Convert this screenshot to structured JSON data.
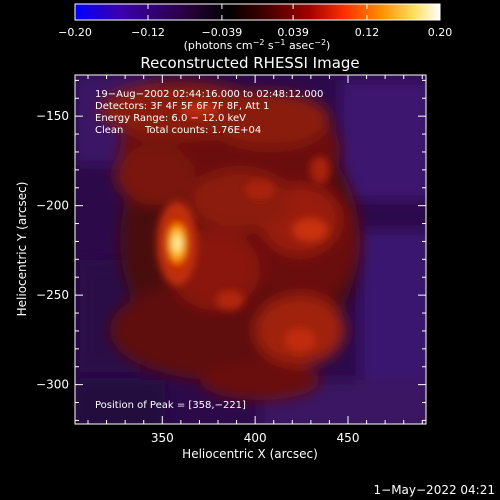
{
  "chart_data": {
    "type": "heatmap",
    "title": "Reconstructed RHESSI Image",
    "xlabel": "Heliocentric X (arcsec)",
    "ylabel": "Heliocentric Y (arcsec)",
    "xlim": [
      303,
      492
    ],
    "ylim": [
      -322,
      -127
    ],
    "x_ticks": [
      350,
      400,
      450
    ],
    "y_ticks": [
      -150,
      -200,
      -250,
      -300
    ],
    "x_tick_labels": [
      "350",
      "400",
      "450"
    ],
    "y_tick_labels": [
      "−150",
      "−200",
      "−250",
      "−300"
    ],
    "colorbar": {
      "min": -0.2,
      "max": 0.2,
      "ticks": [
        -0.2,
        -0.12,
        -0.039,
        0.039,
        0.12,
        0.2
      ],
      "tick_labels": [
        "−0.20",
        "−0.12",
        "−0.039",
        "0.039",
        "0.12",
        "0.20"
      ],
      "unit_prefix": "(photons cm",
      "unit_exp1": "−2",
      "unit_mid": " s",
      "unit_exp2": "−1",
      "unit_mid2": " asec",
      "unit_exp3": "−2",
      "unit_suffix": ")",
      "colormap": [
        "#0000ff",
        "#3a00b0",
        "#2a0040",
        "#000000",
        "#400000",
        "#a00000",
        "#ff3000",
        "#ff9000",
        "#ffe060",
        "#ffffff"
      ]
    },
    "annotations": {
      "time_range": "19−Aug−2002 02:44:16.000 to 02:48:12.000",
      "detectors": "Detectors: 3F 4F 5F 6F 7F 8F, Att 1",
      "energy_range": "Energy Range: 6.0 − 12.0 keV",
      "clean_label": "Clean",
      "total_counts": "Total counts: 1.76E+04",
      "peak_position": "Position of Peak = [358,−221]"
    },
    "peak": {
      "x": 358,
      "y": -221,
      "value": 0.2
    },
    "emission_region": {
      "x_range": [
        335,
        450
      ],
      "y_range": [
        -310,
        -150
      ]
    }
  },
  "footer": {
    "timestamp": "1−May−2022 04:21"
  }
}
